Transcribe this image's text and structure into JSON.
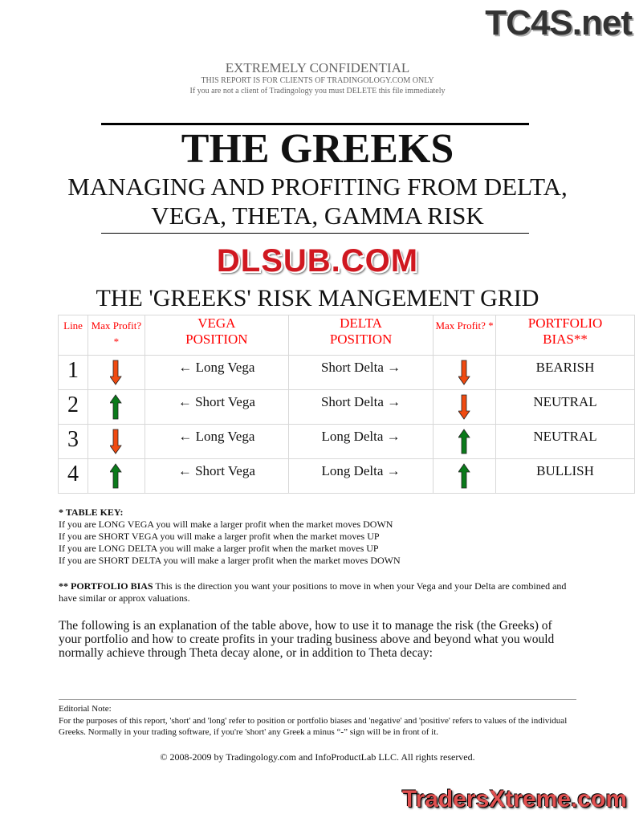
{
  "watermarks": {
    "top_right": "TC4S.net",
    "center": "DLSUB.COM",
    "bottom_right": "TradersXtreme.com"
  },
  "header": {
    "confidential": "EXTREMELY CONFIDENTIAL",
    "line1": "THIS REPORT IS FOR CLIENTS OF TRADINGOLOGY.COM ONLY",
    "line2": "If you are not a client of Tradingology you must DELETE this file immediately"
  },
  "title": {
    "main": "THE GREEKS",
    "sub1": "MANAGING AND PROFITING FROM DELTA,",
    "sub2": "VEGA, THETA, GAMMA RISK"
  },
  "grid": {
    "title": "THE 'GREEKS' RISK MANGEMENT GRID",
    "headers": [
      "Line",
      "Max Profit? *",
      "VEGA POSITION",
      "DELTA POSITION",
      "Max Profit? *",
      "PORTFOLIO BIAS**"
    ],
    "rows": [
      {
        "line": "1",
        "vega_arrow": "down",
        "vega": "← Long Vega",
        "delta": "Short Delta →",
        "delta_arrow": "down",
        "bias": "BEARISH"
      },
      {
        "line": "2",
        "vega_arrow": "up",
        "vega": "← Short Vega",
        "delta": "Short Delta →",
        "delta_arrow": "down",
        "bias": "NEUTRAL"
      },
      {
        "line": "3",
        "vega_arrow": "down",
        "vega": "← Long Vega",
        "delta": "Long Delta →",
        "delta_arrow": "up",
        "bias": "NEUTRAL"
      },
      {
        "line": "4",
        "vega_arrow": "up",
        "vega": "← Short Vega",
        "delta": "Long Delta →",
        "delta_arrow": "up",
        "bias": "BULLISH"
      }
    ],
    "colors": {
      "header": "#ff0000",
      "up": "#0a7a1a",
      "down": "#f04a10"
    }
  },
  "key": {
    "title": "* TABLE KEY:",
    "lines": [
      "If you are LONG VEGA you will make a larger profit when the market moves DOWN",
      "If you are SHORT VEGA you will make a larger profit when the market moves UP",
      "If you are LONG DELTA you will make a larger profit when the market moves UP",
      "If you are SHORT DELTA you will make a larger profit when the market moves DOWN"
    ]
  },
  "bias_note": {
    "label": "** PORTFOLIO BIAS",
    "text": " This is the direction you want your positions to move in when your Vega and your Delta are combined and have similar or approx valuations."
  },
  "intro": "The following is an explanation of the table above, how to use it to manage the risk (the Greeks) of your portfolio and how to create profits in your trading business above and beyond what you would normally achieve through Theta decay alone, or in addition to Theta decay:",
  "editorial": {
    "title": "Editorial Note:",
    "text": "For the purposes of this report, 'short' and 'long' refer to position or portfolio biases and 'negative' and 'positive' refers to values of the individual Greeks. Normally in your trading software, if you're 'short' any Greek a minus “-” sign will be in front of it."
  },
  "copyright": "© 2008-2009 by Tradingology.com and InfoProductLab LLC. All rights reserved."
}
